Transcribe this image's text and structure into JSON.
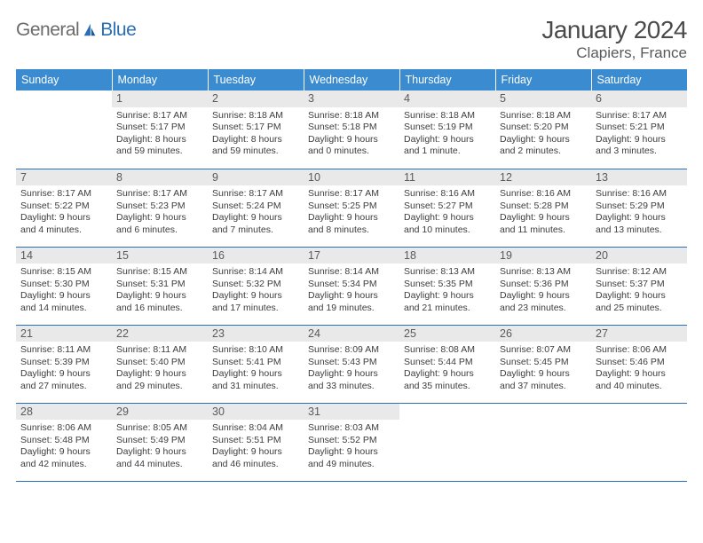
{
  "brand": {
    "part1": "General",
    "part2": "Blue"
  },
  "title": "January 2024",
  "location": "Clapiers, France",
  "colors": {
    "header_bg": "#3a8bd0",
    "header_text": "#ffffff",
    "border": "#2a6fb5",
    "daynum_bg": "#e9e9e9",
    "daynum_text": "#5a5a5a",
    "body_text": "#3d3d3d",
    "logo_grey": "#6b6b6b",
    "logo_blue": "#2a6fb5"
  },
  "days_of_week": [
    "Sunday",
    "Monday",
    "Tuesday",
    "Wednesday",
    "Thursday",
    "Friday",
    "Saturday"
  ],
  "start_offset": 1,
  "cells": [
    {
      "n": 1,
      "sunrise": "8:17 AM",
      "sunset": "5:17 PM",
      "daylight": "8 hours and 59 minutes."
    },
    {
      "n": 2,
      "sunrise": "8:18 AM",
      "sunset": "5:17 PM",
      "daylight": "8 hours and 59 minutes."
    },
    {
      "n": 3,
      "sunrise": "8:18 AM",
      "sunset": "5:18 PM",
      "daylight": "9 hours and 0 minutes."
    },
    {
      "n": 4,
      "sunrise": "8:18 AM",
      "sunset": "5:19 PM",
      "daylight": "9 hours and 1 minute."
    },
    {
      "n": 5,
      "sunrise": "8:18 AM",
      "sunset": "5:20 PM",
      "daylight": "9 hours and 2 minutes."
    },
    {
      "n": 6,
      "sunrise": "8:17 AM",
      "sunset": "5:21 PM",
      "daylight": "9 hours and 3 minutes."
    },
    {
      "n": 7,
      "sunrise": "8:17 AM",
      "sunset": "5:22 PM",
      "daylight": "9 hours and 4 minutes."
    },
    {
      "n": 8,
      "sunrise": "8:17 AM",
      "sunset": "5:23 PM",
      "daylight": "9 hours and 6 minutes."
    },
    {
      "n": 9,
      "sunrise": "8:17 AM",
      "sunset": "5:24 PM",
      "daylight": "9 hours and 7 minutes."
    },
    {
      "n": 10,
      "sunrise": "8:17 AM",
      "sunset": "5:25 PM",
      "daylight": "9 hours and 8 minutes."
    },
    {
      "n": 11,
      "sunrise": "8:16 AM",
      "sunset": "5:27 PM",
      "daylight": "9 hours and 10 minutes."
    },
    {
      "n": 12,
      "sunrise": "8:16 AM",
      "sunset": "5:28 PM",
      "daylight": "9 hours and 11 minutes."
    },
    {
      "n": 13,
      "sunrise": "8:16 AM",
      "sunset": "5:29 PM",
      "daylight": "9 hours and 13 minutes."
    },
    {
      "n": 14,
      "sunrise": "8:15 AM",
      "sunset": "5:30 PM",
      "daylight": "9 hours and 14 minutes."
    },
    {
      "n": 15,
      "sunrise": "8:15 AM",
      "sunset": "5:31 PM",
      "daylight": "9 hours and 16 minutes."
    },
    {
      "n": 16,
      "sunrise": "8:14 AM",
      "sunset": "5:32 PM",
      "daylight": "9 hours and 17 minutes."
    },
    {
      "n": 17,
      "sunrise": "8:14 AM",
      "sunset": "5:34 PM",
      "daylight": "9 hours and 19 minutes."
    },
    {
      "n": 18,
      "sunrise": "8:13 AM",
      "sunset": "5:35 PM",
      "daylight": "9 hours and 21 minutes."
    },
    {
      "n": 19,
      "sunrise": "8:13 AM",
      "sunset": "5:36 PM",
      "daylight": "9 hours and 23 minutes."
    },
    {
      "n": 20,
      "sunrise": "8:12 AM",
      "sunset": "5:37 PM",
      "daylight": "9 hours and 25 minutes."
    },
    {
      "n": 21,
      "sunrise": "8:11 AM",
      "sunset": "5:39 PM",
      "daylight": "9 hours and 27 minutes."
    },
    {
      "n": 22,
      "sunrise": "8:11 AM",
      "sunset": "5:40 PM",
      "daylight": "9 hours and 29 minutes."
    },
    {
      "n": 23,
      "sunrise": "8:10 AM",
      "sunset": "5:41 PM",
      "daylight": "9 hours and 31 minutes."
    },
    {
      "n": 24,
      "sunrise": "8:09 AM",
      "sunset": "5:43 PM",
      "daylight": "9 hours and 33 minutes."
    },
    {
      "n": 25,
      "sunrise": "8:08 AM",
      "sunset": "5:44 PM",
      "daylight": "9 hours and 35 minutes."
    },
    {
      "n": 26,
      "sunrise": "8:07 AM",
      "sunset": "5:45 PM",
      "daylight": "9 hours and 37 minutes."
    },
    {
      "n": 27,
      "sunrise": "8:06 AM",
      "sunset": "5:46 PM",
      "daylight": "9 hours and 40 minutes."
    },
    {
      "n": 28,
      "sunrise": "8:06 AM",
      "sunset": "5:48 PM",
      "daylight": "9 hours and 42 minutes."
    },
    {
      "n": 29,
      "sunrise": "8:05 AM",
      "sunset": "5:49 PM",
      "daylight": "9 hours and 44 minutes."
    },
    {
      "n": 30,
      "sunrise": "8:04 AM",
      "sunset": "5:51 PM",
      "daylight": "9 hours and 46 minutes."
    },
    {
      "n": 31,
      "sunrise": "8:03 AM",
      "sunset": "5:52 PM",
      "daylight": "9 hours and 49 minutes."
    }
  ]
}
